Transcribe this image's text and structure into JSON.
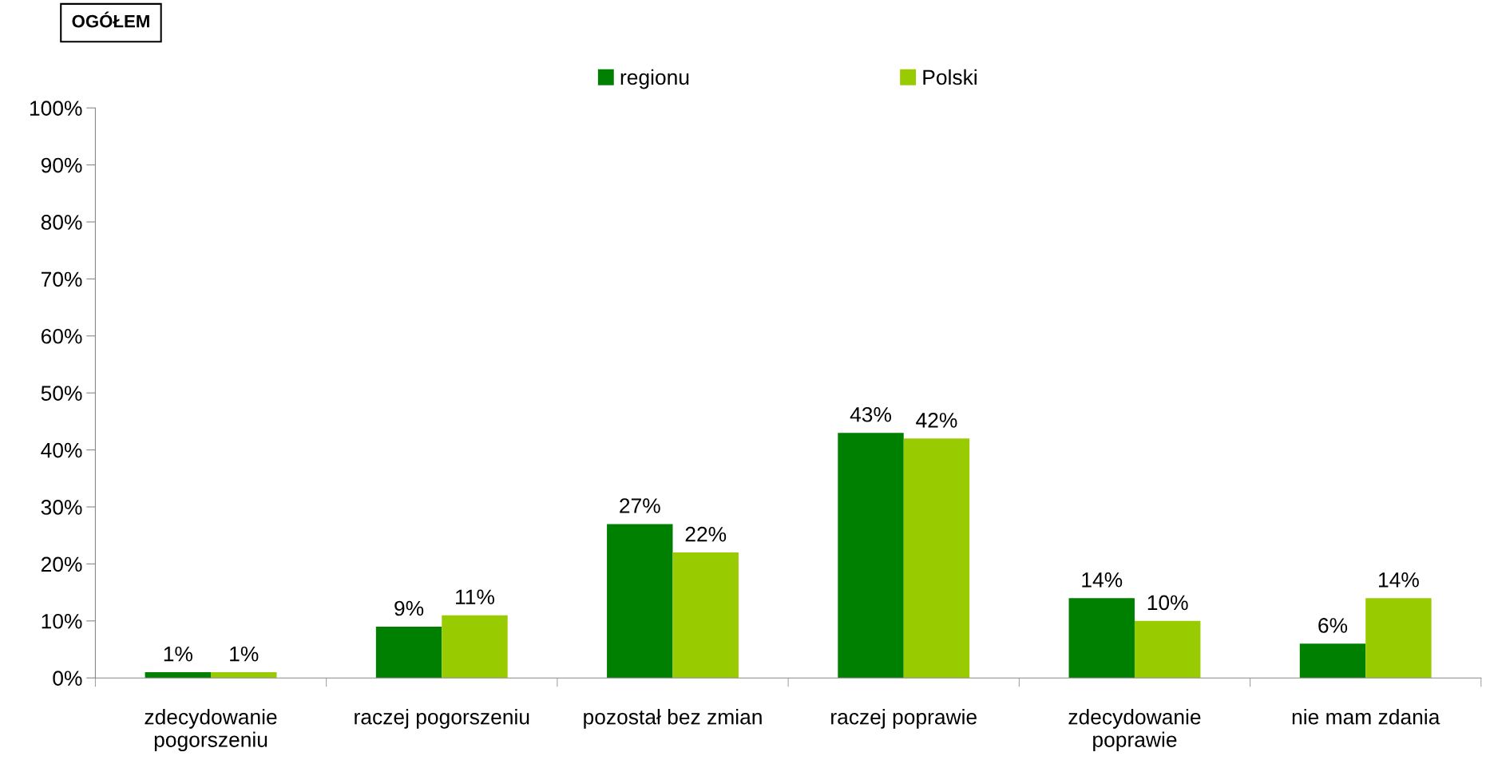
{
  "chart_data": {
    "type": "bar",
    "title": "OGÓŁEM",
    "categories": [
      "zdecydowanie\npogorszeniu",
      "raczej pogorszeniu",
      "pozostał bez zmian",
      "raczej poprawie",
      "zdecydowanie\npoprawie",
      "nie mam zdania"
    ],
    "series": [
      {
        "name": "regionu",
        "color": "#008000",
        "values": [
          1,
          9,
          27,
          43,
          14,
          6
        ],
        "value_labels": [
          "1%",
          "9%",
          "27%",
          "43%",
          "14%",
          "6%"
        ]
      },
      {
        "name": "Polski",
        "color": "#99cc00",
        "values": [
          1,
          11,
          22,
          42,
          10,
          14
        ],
        "value_labels": [
          "1%",
          "11%",
          "22%",
          "42%",
          "10%",
          "14%"
        ]
      }
    ],
    "ylim": [
      0,
      100
    ],
    "yticks": [
      {
        "value": 0,
        "label": "0%"
      },
      {
        "value": 10,
        "label": "10%"
      },
      {
        "value": 20,
        "label": "20%"
      },
      {
        "value": 30,
        "label": "30%"
      },
      {
        "value": 40,
        "label": "40%"
      },
      {
        "value": 50,
        "label": "50%"
      },
      {
        "value": 60,
        "label": "60%"
      },
      {
        "value": 70,
        "label": "70%"
      },
      {
        "value": 80,
        "label": "80%"
      },
      {
        "value": 90,
        "label": "90%"
      },
      {
        "value": 100,
        "label": "100%"
      }
    ],
    "grid": false,
    "legend": "top"
  }
}
